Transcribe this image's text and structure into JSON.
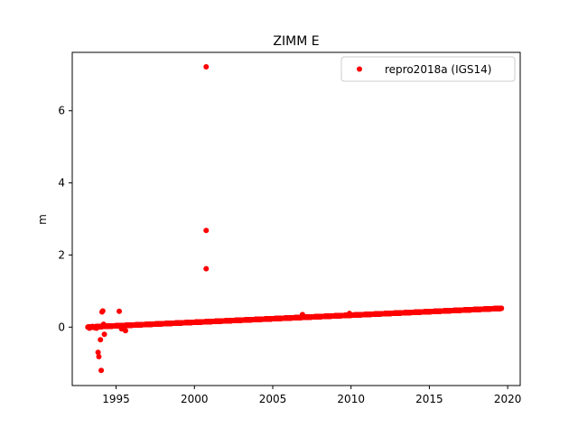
{
  "chart_data": {
    "type": "scatter",
    "title": "ZIMM E",
    "xlabel": "",
    "ylabel": "m",
    "xlim": [
      1992.2,
      2020.8
    ],
    "ylim": [
      -1.62,
      7.62
    ],
    "x_ticks": [
      1995,
      2000,
      2005,
      2010,
      2015,
      2020
    ],
    "y_ticks": [
      0,
      2,
      4,
      6
    ],
    "grid": false,
    "legend_position": "top-right",
    "marker_color": "#ff0000",
    "series": [
      {
        "name": "repro2018a (IGS14)",
        "trend": {
          "x_start": 1993.2,
          "x_end": 2019.6,
          "y_start": 0.0,
          "y_end": 0.52,
          "daily_samples": true
        },
        "outliers": [
          {
            "x": 1993.3,
            "y": -0.03
          },
          {
            "x": 1993.5,
            "y": 0.02
          },
          {
            "x": 1993.65,
            "y": -0.02
          },
          {
            "x": 1993.75,
            "y": -0.03
          },
          {
            "x": 1993.85,
            "y": -0.7
          },
          {
            "x": 1993.9,
            "y": -0.82
          },
          {
            "x": 1994.0,
            "y": -0.35
          },
          {
            "x": 1994.05,
            "y": -1.2
          },
          {
            "x": 1994.1,
            "y": 0.42
          },
          {
            "x": 1994.15,
            "y": 0.45
          },
          {
            "x": 1994.2,
            "y": 0.08
          },
          {
            "x": 1994.25,
            "y": -0.2
          },
          {
            "x": 1995.2,
            "y": 0.44
          },
          {
            "x": 1995.3,
            "y": 0.02
          },
          {
            "x": 1995.35,
            "y": -0.05
          },
          {
            "x": 1995.6,
            "y": -0.1
          },
          {
            "x": 2000.75,
            "y": 7.22
          },
          {
            "x": 2000.75,
            "y": 2.68
          },
          {
            "x": 2000.75,
            "y": 1.62
          },
          {
            "x": 2006.9,
            "y": 0.35
          },
          {
            "x": 2009.9,
            "y": 0.38
          }
        ]
      }
    ]
  }
}
